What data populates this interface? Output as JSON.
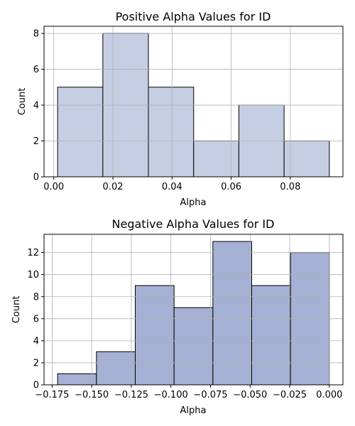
{
  "chart_data": [
    {
      "type": "bar",
      "title": "Positive Alpha Values for ID",
      "xlabel": "Alpha",
      "ylabel": "Count",
      "bin_edges": [
        0.0013,
        0.0166,
        0.032,
        0.0473,
        0.0626,
        0.0779,
        0.0932
      ],
      "values": [
        5,
        8,
        5,
        2,
        4,
        2
      ],
      "xlim": [
        -0.0033,
        0.0978
      ],
      "ylim": [
        0,
        8.4
      ],
      "xticks": [
        0.0,
        0.02,
        0.04,
        0.06,
        0.08
      ],
      "xtick_labels": [
        "0.00",
        "0.02",
        "0.04",
        "0.06",
        "0.08"
      ],
      "yticks": [
        0,
        2,
        4,
        6,
        8
      ],
      "ytick_labels": [
        "0",
        "2",
        "4",
        "6",
        "8"
      ],
      "grid": true,
      "bar_color": "#c5cee3",
      "edge_color": "#000000"
    },
    {
      "type": "bar",
      "title": "Negative Alpha Values for ID",
      "xlabel": "Alpha",
      "ylabel": "Count",
      "bin_edges": [
        -0.1715,
        -0.147,
        -0.1225,
        -0.098,
        -0.0735,
        -0.049,
        -0.0245,
        0.0
      ],
      "values": [
        1,
        3,
        9,
        7,
        13,
        9,
        12
      ],
      "xlim": [
        -0.1801,
        0.0086
      ],
      "ylim": [
        0,
        13.65
      ],
      "xticks": [
        -0.175,
        -0.15,
        -0.125,
        -0.1,
        -0.075,
        -0.05,
        -0.025,
        0.0
      ],
      "xtick_labels": [
        "−0.175",
        "−0.150",
        "−0.125",
        "−0.100",
        "−0.075",
        "−0.050",
        "−0.025",
        "0.000"
      ],
      "yticks": [
        0,
        2,
        4,
        6,
        8,
        10,
        12
      ],
      "ytick_labels": [
        "0",
        "2",
        "4",
        "6",
        "8",
        "10",
        "12"
      ],
      "grid": true,
      "bar_color": "#a5b1d4",
      "edge_color": "#000000"
    }
  ]
}
